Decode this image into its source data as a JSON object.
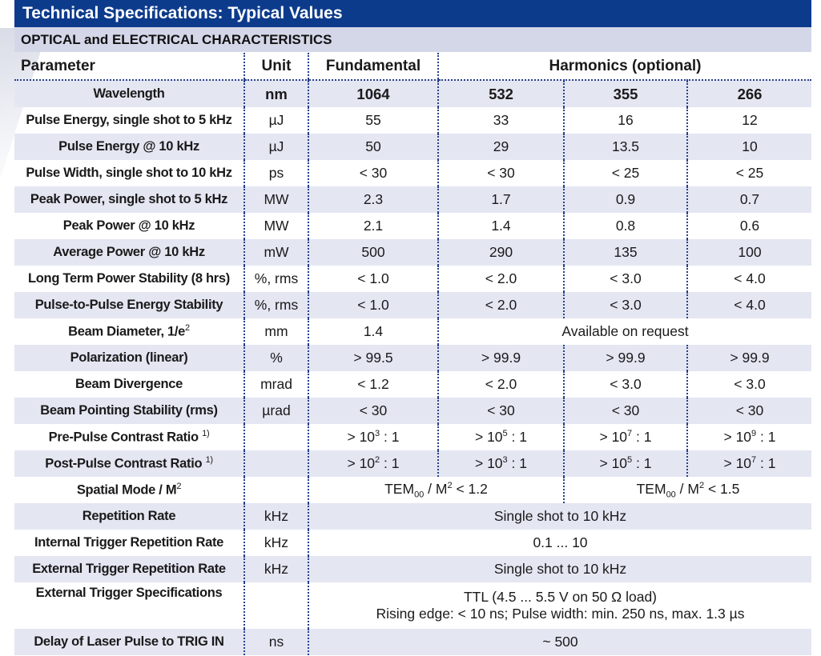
{
  "title": "Technical Specifications: Typical Values",
  "section": "OPTICAL and ELECTRICAL CHARACTERISTICS",
  "headers": {
    "parameter": "Parameter",
    "unit": "Unit",
    "fundamental": "Fundamental",
    "harmonics": "Harmonics (optional)"
  },
  "rows": {
    "wavelength": {
      "param": "Wavelength",
      "unit": "nm",
      "v": [
        "1064",
        "532",
        "355",
        "266"
      ]
    },
    "pulse_energy_5k": {
      "param": "Pulse Energy, single shot to 5 kHz",
      "unit": "µJ",
      "v": [
        "55",
        "33",
        "16",
        "12"
      ]
    },
    "pulse_energy_10k": {
      "param": "Pulse Energy @ 10 kHz",
      "unit": "µJ",
      "v": [
        "50",
        "29",
        "13.5",
        "10"
      ]
    },
    "pulse_width": {
      "param": "Pulse Width, single shot to 10 kHz",
      "unit": "ps",
      "v": [
        "< 30",
        "< 30",
        "< 25",
        "< 25"
      ]
    },
    "peak_power_5k": {
      "param": "Peak Power, single shot to 5 kHz",
      "unit": "MW",
      "v": [
        "2.3",
        "1.7",
        "0.9",
        "0.7"
      ]
    },
    "peak_power_10k": {
      "param": "Peak Power @ 10 kHz",
      "unit": "MW",
      "v": [
        "2.1",
        "1.4",
        "0.8",
        "0.6"
      ]
    },
    "avg_power": {
      "param": "Average Power @ 10 kHz",
      "unit": "mW",
      "v": [
        "500",
        "290",
        "135",
        "100"
      ]
    },
    "long_term": {
      "param": "Long Term Power Stability (8 hrs)",
      "unit": "%, rms",
      "v": [
        "< 1.0",
        "< 2.0",
        "< 3.0",
        "< 4.0"
      ]
    },
    "p2p": {
      "param": "Pulse-to-Pulse Energy Stability",
      "unit": "%, rms",
      "v": [
        "< 1.0",
        "< 2.0",
        "< 3.0",
        "< 4.0"
      ]
    },
    "beam_diameter": {
      "param": "Beam Diameter, 1/e",
      "param_sup": "2",
      "unit": "mm",
      "fund": "1.4",
      "harm": "Available on request"
    },
    "polarization": {
      "param": "Polarization (linear)",
      "unit": "%",
      "v": [
        "> 99.5",
        "> 99.9",
        "> 99.9",
        "> 99.9"
      ]
    },
    "divergence": {
      "param": "Beam Divergence",
      "unit": "mrad",
      "v": [
        "< 1.2",
        "< 2.0",
        "< 3.0",
        "< 3.0"
      ]
    },
    "pointing": {
      "param": "Beam Pointing Stability (rms)",
      "unit": "µrad",
      "v": [
        "< 30",
        "< 30",
        "< 30",
        "< 30"
      ]
    },
    "pre_pulse": {
      "param": "Pre-Pulse Contrast Ratio",
      "note": "1)",
      "unit": "",
      "v": [
        {
          "base": "> 10",
          "exp": "3",
          "tail": " : 1"
        },
        {
          "base": "> 10",
          "exp": "5",
          "tail": " : 1"
        },
        {
          "base": "> 10",
          "exp": "7",
          "tail": " : 1"
        },
        {
          "base": "> 10",
          "exp": "9",
          "tail": " : 1"
        }
      ]
    },
    "post_pulse": {
      "param": "Post-Pulse Contrast Ratio",
      "note": "1)",
      "unit": "",
      "v": [
        {
          "base": "> 10",
          "exp": "2",
          "tail": " : 1"
        },
        {
          "base": "> 10",
          "exp": "3",
          "tail": " : 1"
        },
        {
          "base": "> 10",
          "exp": "5",
          "tail": " : 1"
        },
        {
          "base": "> 10",
          "exp": "7",
          "tail": " : 1"
        }
      ]
    },
    "spatial_mode": {
      "param": "Spatial Mode / M",
      "param_sup": "2",
      "unit": "",
      "left": {
        "a": "TEM",
        "sub": "00",
        "b": " / M",
        "sup": "2",
        "c": " < 1.2"
      },
      "right": {
        "a": "TEM",
        "sub": "00",
        "b": " / M",
        "sup": "2",
        "c": " < 1.5"
      }
    },
    "rep_rate": {
      "param": "Repetition Rate",
      "unit": "kHz",
      "value": "Single shot to 10 kHz"
    },
    "int_trigger": {
      "param": "Internal Trigger Repetition Rate",
      "unit": "kHz",
      "value": "0.1 ... 10"
    },
    "ext_trigger": {
      "param": "External Trigger Repetition Rate",
      "unit": "kHz",
      "value": "Single shot to 10 kHz"
    },
    "ext_spec": {
      "param": "External Trigger Specifications",
      "unit": "",
      "line1": "TTL (4.5 ... 5.5 V on 50 Ω load)",
      "line2": "Rising edge: < 10 ns; Pulse width: min. 250 ns, max. 1.3 µs"
    },
    "delay": {
      "param": "Delay of Laser Pulse to TRIG IN",
      "unit": "ns",
      "value": "~ 500"
    }
  }
}
